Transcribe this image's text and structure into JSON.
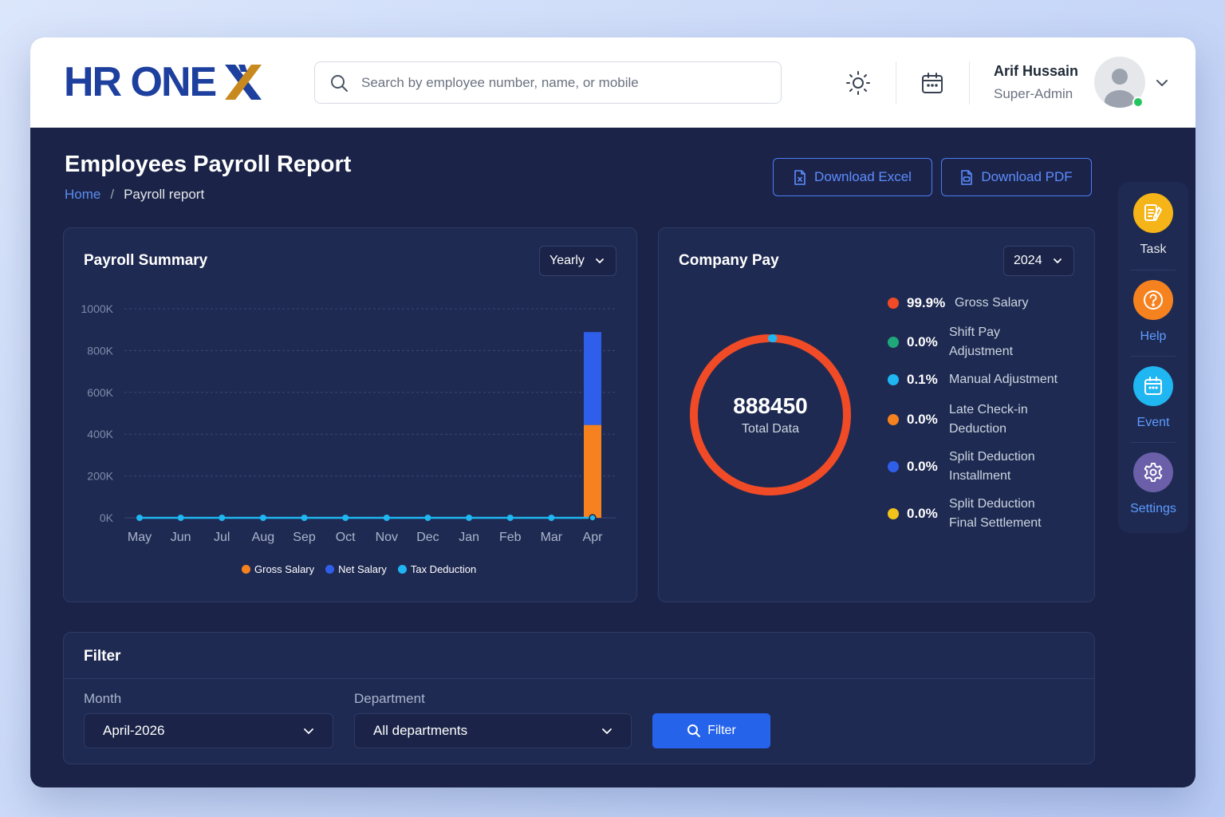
{
  "app": {
    "logo_text": "HR ONE",
    "logo_mark": "X"
  },
  "search": {
    "placeholder": "Search by employee number, name, or mobile"
  },
  "user": {
    "name": "Arif Hussain",
    "role": "Super-Admin"
  },
  "page": {
    "title": "Employees Payroll Report",
    "breadcrumb": {
      "home": "Home",
      "separator": "/",
      "current": "Payroll report"
    },
    "actions": {
      "download_excel": "Download Excel",
      "download_pdf": "Download PDF"
    }
  },
  "payroll_summary": {
    "title": "Payroll Summary",
    "period": "Yearly"
  },
  "chart_data": {
    "type": "bar",
    "title": "Payroll Summary",
    "categories": [
      "May",
      "Jun",
      "Jul",
      "Aug",
      "Sep",
      "Oct",
      "Nov",
      "Dec",
      "Jan",
      "Feb",
      "Mar",
      "Apr"
    ],
    "ytick_labels": [
      "0K",
      "200K",
      "400K",
      "600K",
      "800K",
      "1000K"
    ],
    "ylim": [
      0,
      1000000
    ],
    "yticks": [
      0,
      200000,
      400000,
      600000,
      800000,
      1000000
    ],
    "grid": true,
    "stacked": true,
    "legend_position": "bottom",
    "series": [
      {
        "name": "Gross Salary",
        "kind": "bar",
        "color": "#f5821f",
        "values": [
          0,
          0,
          0,
          0,
          0,
          0,
          0,
          0,
          0,
          0,
          0,
          444225
        ]
      },
      {
        "name": "Net Salary",
        "kind": "bar",
        "color": "#2f5fea",
        "values": [
          0,
          0,
          0,
          0,
          0,
          0,
          0,
          0,
          0,
          0,
          0,
          444225
        ]
      },
      {
        "name": "Tax Deduction",
        "kind": "line",
        "color": "#1fb6f2",
        "values": [
          0,
          0,
          0,
          0,
          0,
          0,
          0,
          0,
          0,
          0,
          0,
          0
        ]
      }
    ]
  },
  "company_pay": {
    "title": "Company Pay",
    "year": "2024",
    "total_value": "888450",
    "total_label": "Total Data",
    "items": [
      {
        "percent": "99.9%",
        "line1": "Gross Salary",
        "line2": "",
        "color": "#f04b26",
        "share": 99.9
      },
      {
        "percent": "0.0%",
        "line1": "Shift Pay",
        "line2": "Adjustment",
        "color": "#1fa87a",
        "share": 0.0
      },
      {
        "percent": "0.1%",
        "line1": "Manual Adjustment",
        "line2": "",
        "color": "#1fb6f2",
        "share": 0.1
      },
      {
        "percent": "0.0%",
        "line1": "Late Check-in",
        "line2": "Deduction",
        "color": "#f5821f",
        "share": 0.0
      },
      {
        "percent": "0.0%",
        "line1": "Split Deduction",
        "line2": "Installment",
        "color": "#2f5fea",
        "share": 0.0
      },
      {
        "percent": "0.0%",
        "line1": "Split Deduction",
        "line2": "Final Settlement",
        "color": "#f2c31b",
        "share": 0.0
      }
    ]
  },
  "dock": {
    "items": [
      {
        "label": "Task",
        "icon": "task-icon",
        "color": "#f5b417",
        "label_color": "#e5e7eb"
      },
      {
        "label": "Help",
        "icon": "help-icon",
        "color": "#f5821f",
        "label_color": "#5d9cff"
      },
      {
        "label": "Event",
        "icon": "calendar-icon",
        "color": "#1fb6f2",
        "label_color": "#5d9cff"
      },
      {
        "label": "Settings",
        "icon": "gear-icon",
        "color": "#6a5fa8",
        "label_color": "#5d9cff"
      }
    ]
  },
  "filter": {
    "title": "Filter",
    "month_label": "Month",
    "month_value": "April-2026",
    "department_label": "Department",
    "department_value": "All departments",
    "button_label": "Filter"
  },
  "colors": {
    "primary": "#2563eb",
    "background": "#1b2448",
    "card": "#1f2a52",
    "logo": "#1d3f9e"
  }
}
